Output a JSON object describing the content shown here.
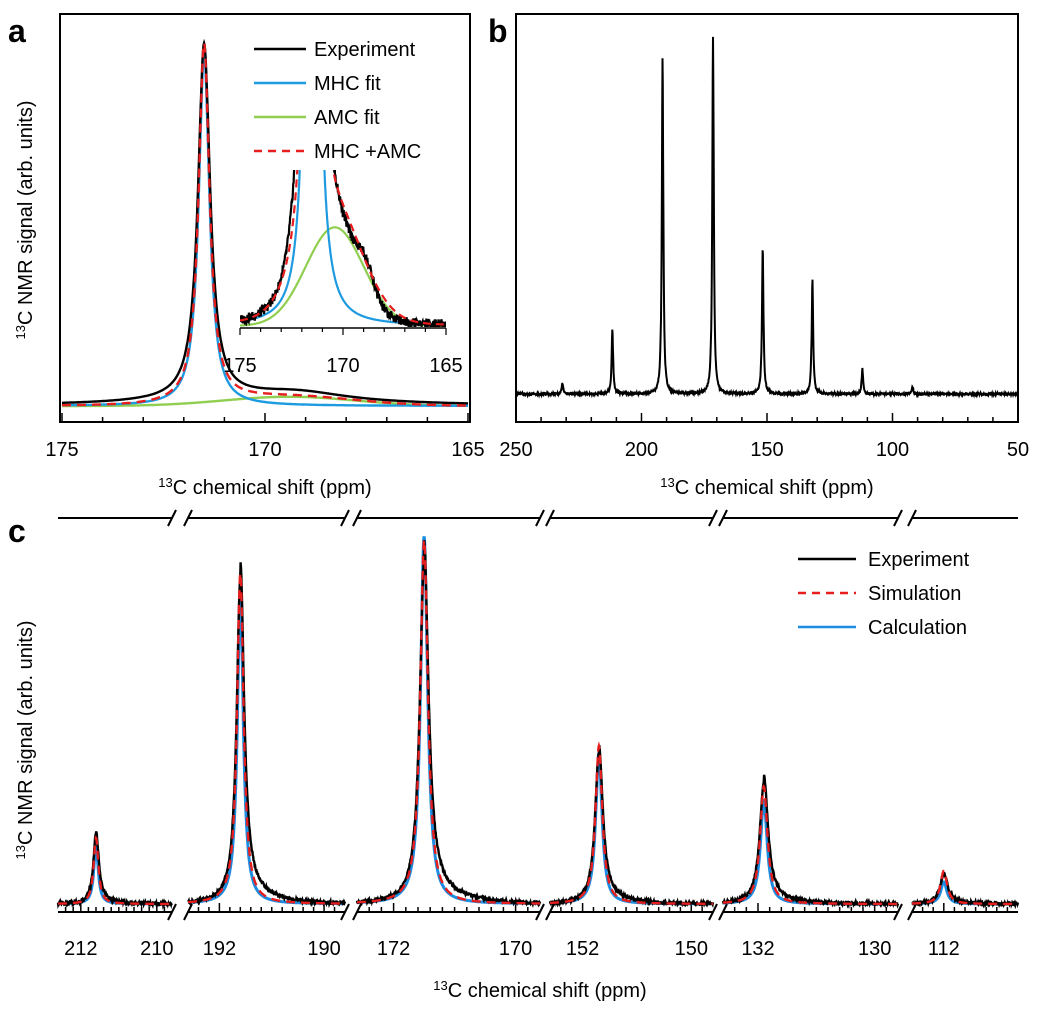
{
  "chart_data": [
    {
      "panel": "a",
      "type": "line",
      "xlabel": "chemical shift (ppm)",
      "xlabel_sup": "13",
      "xlabel_prefix": "C",
      "ylabel": "C NMR signal (arb. units)",
      "ylabel_sup": "13",
      "x_reversed": true,
      "xlim": [
        175,
        165
      ],
      "ylim": [
        0,
        1
      ],
      "x_ticks": [
        175,
        170,
        165
      ],
      "legend_position": "top-right",
      "series": [
        {
          "name": "Experiment",
          "color": "#000000",
          "dash": "solid",
          "components": [
            {
              "center": 171.5,
              "height": 0.96,
              "width": 0.18
            },
            {
              "center": 169.2,
              "height": 0.025,
              "width": 1.5
            },
            {
              "center": 170.4,
              "height": 0.015,
              "width": 3.0
            }
          ]
        },
        {
          "name": "MHC fit",
          "color": "#1E9BE0",
          "dash": "solid",
          "components": [
            {
              "center": 171.5,
              "height": 0.95,
              "width": 0.16
            }
          ]
        },
        {
          "name": "AMC fit",
          "color": "#90CE50",
          "dash": "solid",
          "components": [
            {
              "center": 169.4,
              "height": 0.025,
              "width": 1.6
            }
          ]
        },
        {
          "name": "MHC +AMC",
          "color": "#E61E1E",
          "dash": "dashed",
          "components": [
            {
              "center": 171.5,
              "height": 0.97,
              "width": 0.16
            },
            {
              "center": 169.4,
              "height": 0.025,
              "width": 1.6
            }
          ]
        }
      ],
      "inset": {
        "xlim": [
          175,
          165
        ],
        "x_ticks": [
          175,
          170,
          165
        ],
        "ylim": [
          0,
          0.06
        ],
        "series": [
          {
            "name": "Experiment",
            "color": "#000000",
            "components": [
              {
                "center": 171.5,
                "height": 0.96,
                "width": 0.18
              },
              {
                "center": 170.6,
                "height": 0.037,
                "width": 1.2
              },
              {
                "center": 171.8,
                "height": 0.02,
                "width": 0.5
              },
              {
                "center": 168.9,
                "height": 0.01,
                "width": 0.4
              }
            ]
          },
          {
            "name": "MHC fit",
            "color": "#1E9BE0",
            "components": [
              {
                "center": 171.5,
                "height": 0.95,
                "width": 0.16
              }
            ]
          },
          {
            "name": "AMC fit",
            "color": "#90CE50",
            "components": [
              {
                "center": 170.4,
                "height": 0.04,
                "width": 1.4
              }
            ]
          },
          {
            "name": "MHC +AMC",
            "color": "#E61E1E",
            "components": [
              {
                "center": 171.5,
                "height": 0.97,
                "width": 0.16
              },
              {
                "center": 170.4,
                "height": 0.04,
                "width": 1.4
              }
            ]
          }
        ]
      }
    },
    {
      "panel": "b",
      "type": "line",
      "xlabel": "chemical shift (ppm)",
      "xlabel_sup": "13",
      "xlabel_prefix": "C",
      "x_reversed": true,
      "xlim": [
        250,
        50
      ],
      "ylim": [
        0,
        1
      ],
      "x_ticks": [
        250,
        200,
        150,
        100,
        50
      ],
      "series": [
        {
          "name": "Experiment",
          "color": "#000000",
          "peaks": [
            {
              "x": 231.5,
              "y": 0.03
            },
            {
              "x": 211.6,
              "y": 0.18
            },
            {
              "x": 191.6,
              "y": 0.94
            },
            {
              "x": 171.5,
              "y": 1.0
            },
            {
              "x": 151.7,
              "y": 0.41
            },
            {
              "x": 131.9,
              "y": 0.32
            },
            {
              "x": 112.0,
              "y": 0.07
            },
            {
              "x": 92.0,
              "y": 0.02
            }
          ]
        }
      ]
    },
    {
      "panel": "c",
      "type": "line",
      "xlabel": "chemical shift (ppm)",
      "xlabel_sup": "13",
      "xlabel_prefix": "C",
      "ylabel": "C NMR signal (arb. units)",
      "ylabel_sup": "13",
      "x_reversed": true,
      "legend_position": "top-right",
      "ylim": [
        0,
        1
      ],
      "segments": [
        {
          "xlim": [
            212.6,
            209.6
          ],
          "x_ticks": [
            212,
            210
          ]
        },
        {
          "xlim": [
            192.6,
            189.6
          ],
          "x_ticks": [
            192,
            190
          ]
        },
        {
          "xlim": [
            172.6,
            169.6
          ],
          "x_ticks": [
            172,
            170
          ]
        },
        {
          "xlim": [
            152.6,
            149.6
          ],
          "x_ticks": [
            152,
            150
          ]
        },
        {
          "xlim": [
            132.6,
            129.6
          ],
          "x_ticks": [
            132,
            130
          ]
        },
        {
          "xlim": [
            112.6,
            110.6
          ],
          "x_ticks": [
            112
          ]
        }
      ],
      "series": [
        {
          "name": "Experiment",
          "color": "#000000",
          "dash": "solid",
          "peaks": [
            {
              "x": 211.6,
              "y": 0.19
            },
            {
              "x": 191.6,
              "y": 0.88
            },
            {
              "x": 171.5,
              "y": 0.93
            },
            {
              "x": 151.7,
              "y": 0.41
            },
            {
              "x": 131.9,
              "y": 0.33
            },
            {
              "x": 112.0,
              "y": 0.08
            }
          ]
        },
        {
          "name": "Simulation",
          "color": "#E61E1E",
          "dash": "dashed",
          "peaks": [
            {
              "x": 211.6,
              "y": 0.18
            },
            {
              "x": 191.6,
              "y": 0.9
            },
            {
              "x": 171.5,
              "y": 0.99
            },
            {
              "x": 151.7,
              "y": 0.43
            },
            {
              "x": 131.9,
              "y": 0.32
            },
            {
              "x": 112.0,
              "y": 0.09
            }
          ]
        },
        {
          "name": "Calculation",
          "color": "#1E8CE0",
          "dash": "solid",
          "peaks": [
            {
              "x": 211.6,
              "y": 0.16
            },
            {
              "x": 191.6,
              "y": 0.83
            },
            {
              "x": 171.5,
              "y": 1.0
            },
            {
              "x": 151.7,
              "y": 0.41
            },
            {
              "x": 131.9,
              "y": 0.28
            },
            {
              "x": 112.0,
              "y": 0.06
            }
          ]
        }
      ]
    }
  ],
  "panel_labels": {
    "a": "a",
    "b": "b",
    "c": "c"
  }
}
